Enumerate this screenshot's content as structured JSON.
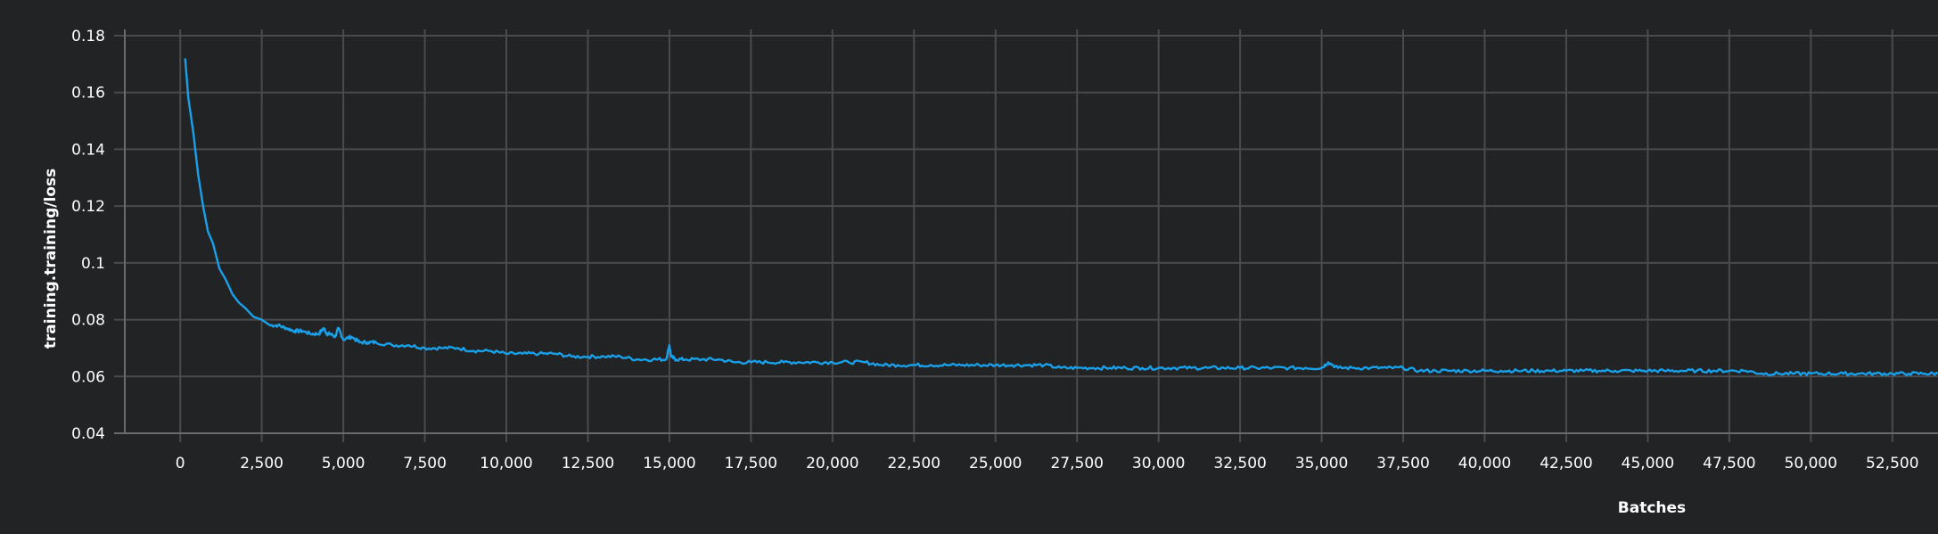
{
  "chart_data": {
    "type": "line",
    "title": "",
    "xlabel": "Batches",
    "ylabel": "training.training/loss",
    "xlim": [
      -1700,
      53900
    ],
    "ylim": [
      0.04,
      0.18
    ],
    "grid": true,
    "x_ticks": [
      "0",
      "2,500",
      "5,000",
      "7,500",
      "10,000",
      "12,500",
      "15,000",
      "17,500",
      "20,000",
      "22,500",
      "25,000",
      "27,500",
      "30,000",
      "32,500",
      "35,000",
      "37,500",
      "40,000",
      "42,500",
      "45,000",
      "47,500",
      "50,000",
      "52,500"
    ],
    "y_ticks": [
      "0.04",
      "0.06",
      "0.08",
      "0.1",
      "0.12",
      "0.14",
      "0.16",
      "0.18"
    ],
    "series": [
      {
        "color": "#1aa0e8",
        "x": [
          150,
          250,
          400,
          550,
          700,
          850,
          1000,
          1200,
          1400,
          1600,
          1800,
          2000,
          2250,
          2500,
          2750,
          3000,
          3250,
          3500,
          3750,
          4000,
          4250,
          4400,
          4500,
          4600,
          4750,
          4850,
          5000,
          5250,
          5500,
          5750,
          6000,
          6500,
          7000,
          7500,
          8000,
          8500,
          9000,
          9500,
          10000,
          10500,
          11000,
          11500,
          12000,
          12500,
          13000,
          13500,
          14000,
          14500,
          14900,
          15000,
          15050,
          15200,
          15500,
          16000,
          16500,
          17000,
          17500,
          18000,
          18500,
          19000,
          19500,
          20000,
          20500,
          21000,
          21500,
          22000,
          22500,
          23000,
          23500,
          24000,
          24500,
          25000,
          25500,
          26000,
          26500,
          27000,
          27500,
          28000,
          28500,
          29000,
          29500,
          30000,
          30500,
          31000,
          31500,
          32000,
          32500,
          33000,
          33500,
          34000,
          34500,
          35000,
          35200,
          35500,
          36000,
          36500,
          37000,
          37500,
          38000,
          38500,
          39000,
          39500,
          40000,
          40500,
          41000,
          41500,
          42000,
          42500,
          43000,
          43500,
          44000,
          44500,
          45000,
          45500,
          46000,
          46500,
          47000,
          47500,
          48000,
          48500,
          49000,
          49500,
          50000,
          50500,
          51000,
          51500,
          52000,
          52500,
          53000,
          53500,
          53900
        ],
        "y": [
          0.172,
          0.158,
          0.146,
          0.131,
          0.12,
          0.111,
          0.107,
          0.098,
          0.094,
          0.089,
          0.086,
          0.084,
          0.081,
          0.08,
          0.078,
          0.078,
          0.077,
          0.076,
          0.076,
          0.075,
          0.075,
          0.077,
          0.075,
          0.075,
          0.074,
          0.077,
          0.073,
          0.074,
          0.072,
          0.072,
          0.072,
          0.071,
          0.071,
          0.07,
          0.07,
          0.07,
          0.069,
          0.069,
          0.068,
          0.068,
          0.068,
          0.068,
          0.067,
          0.067,
          0.067,
          0.067,
          0.066,
          0.066,
          0.066,
          0.071,
          0.067,
          0.066,
          0.066,
          0.066,
          0.066,
          0.065,
          0.065,
          0.065,
          0.065,
          0.065,
          0.065,
          0.065,
          0.065,
          0.065,
          0.064,
          0.064,
          0.064,
          0.064,
          0.064,
          0.064,
          0.064,
          0.064,
          0.064,
          0.064,
          0.064,
          0.063,
          0.063,
          0.063,
          0.063,
          0.063,
          0.063,
          0.063,
          0.063,
          0.063,
          0.063,
          0.063,
          0.063,
          0.063,
          0.063,
          0.063,
          0.063,
          0.063,
          0.065,
          0.063,
          0.063,
          0.063,
          0.063,
          0.063,
          0.062,
          0.062,
          0.062,
          0.062,
          0.062,
          0.062,
          0.062,
          0.062,
          0.062,
          0.062,
          0.062,
          0.062,
          0.062,
          0.062,
          0.062,
          0.062,
          0.062,
          0.062,
          0.062,
          0.062,
          0.062,
          0.061,
          0.061,
          0.061,
          0.061,
          0.061,
          0.061,
          0.061,
          0.061,
          0.061,
          0.061,
          0.061,
          0.061
        ]
      }
    ]
  }
}
